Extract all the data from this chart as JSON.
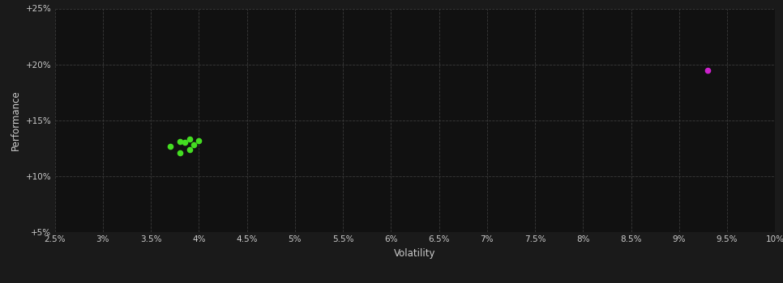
{
  "background_color": "#1a1a1a",
  "plot_bg_color": "#111111",
  "grid_color": "#3a3a3a",
  "xlabel": "Volatility",
  "ylabel": "Performance",
  "xlim": [
    0.025,
    0.1
  ],
  "ylim": [
    0.05,
    0.25
  ],
  "xticks": [
    0.025,
    0.03,
    0.035,
    0.04,
    0.045,
    0.05,
    0.055,
    0.06,
    0.065,
    0.07,
    0.075,
    0.08,
    0.085,
    0.09,
    0.095,
    0.1
  ],
  "yticks": [
    0.05,
    0.1,
    0.15,
    0.2,
    0.25
  ],
  "xtick_labels": [
    "2.5%",
    "3%",
    "3.5%",
    "4%",
    "4.5%",
    "5%",
    "5.5%",
    "6%",
    "6.5%",
    "7%",
    "7.5%",
    "8%",
    "8.5%",
    "9%",
    "9.5%",
    "10%"
  ],
  "ytick_labels": [
    "+5%",
    "+10%",
    "+15%",
    "+20%",
    "+25%"
  ],
  "green_points": [
    [
      0.037,
      0.127
    ],
    [
      0.038,
      0.131
    ],
    [
      0.039,
      0.133
    ],
    [
      0.0385,
      0.13
    ],
    [
      0.04,
      0.132
    ],
    [
      0.0395,
      0.128
    ],
    [
      0.038,
      0.121
    ],
    [
      0.039,
      0.124
    ]
  ],
  "magenta_points": [
    [
      0.093,
      0.195
    ]
  ],
  "green_color": "#44dd22",
  "magenta_color": "#cc22cc",
  "point_size": 20,
  "tick_color": "#cccccc",
  "label_color": "#cccccc",
  "tick_fontsize": 7.5,
  "label_fontsize": 8.5
}
